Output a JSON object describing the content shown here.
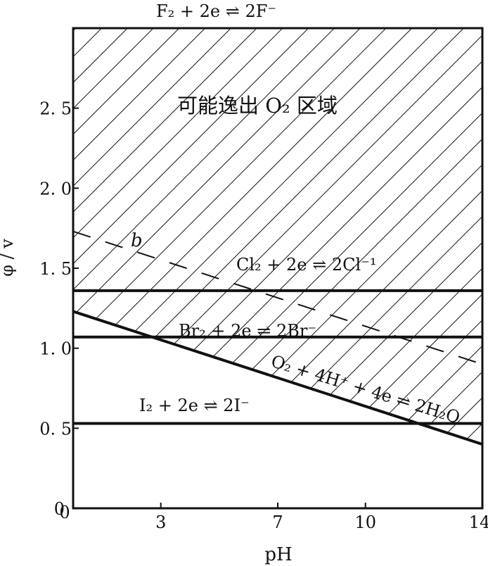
{
  "chart_data": {
    "type": "line",
    "xlabel": "pH",
    "ylabel": "φ / v",
    "xlim": [
      0,
      14
    ],
    "ylim": [
      0,
      3.0
    ],
    "xticks": [
      "3",
      "7",
      "10",
      "14"
    ],
    "xtick_values": [
      3,
      7,
      10,
      14
    ],
    "yticks": [
      "0",
      "0. 5",
      "1. 0",
      "1. 5",
      "2. 0",
      "2. 5"
    ],
    "ytick_values": [
      0,
      0.5,
      1.0,
      1.5,
      2.0,
      2.5
    ],
    "x_zero_label": "0",
    "series": [
      {
        "name": "F₂ + 2e ⇌ 2F⁻",
        "x": [
          0,
          14
        ],
        "y": [
          2.87,
          2.87
        ]
      },
      {
        "name": "Cl₂ + 2e ⇌ 2Cl⁻¹",
        "x": [
          0,
          14
        ],
        "y": [
          1.36,
          1.36
        ]
      },
      {
        "name": "Br₂ + 2e ⇌ 2Br⁻",
        "x": [
          0,
          14
        ],
        "y": [
          1.07,
          1.07
        ]
      },
      {
        "name": "I₂ + 2e ⇌ 2I⁻",
        "x": [
          0,
          14
        ],
        "y": [
          0.53,
          0.53
        ]
      },
      {
        "name": "O₂ + 4H⁺ + 4e ⇌ 2H₂O",
        "x": [
          0,
          14
        ],
        "y": [
          1.23,
          0.4
        ]
      },
      {
        "name": "b",
        "x": [
          0,
          14
        ],
        "y": [
          1.73,
          0.9
        ]
      }
    ],
    "region_label": "可能逸出 O₂ 区域"
  }
}
